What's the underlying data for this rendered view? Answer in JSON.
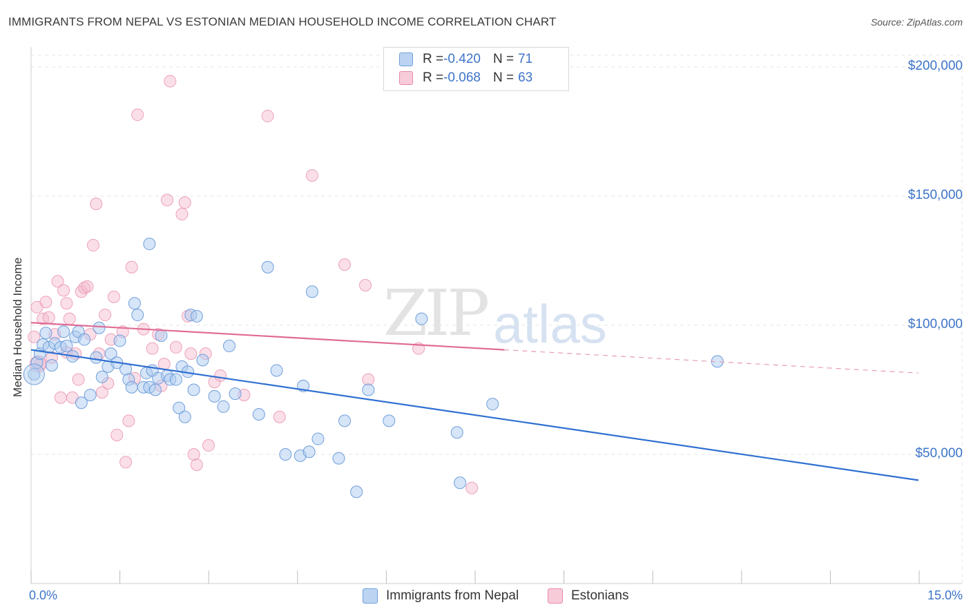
{
  "title": "IMMIGRANTS FROM NEPAL VS ESTONIAN MEDIAN HOUSEHOLD INCOME CORRELATION CHART",
  "source": "Source: ZipAtlas.com",
  "watermark": {
    "zip": "ZIP",
    "atlas": "atlas"
  },
  "legend": {
    "row1": {
      "r_label": "R = ",
      "r_value": "-0.420",
      "n_label": "N = ",
      "n_value": "71"
    },
    "row2": {
      "r_label": "R = ",
      "r_value": "-0.068",
      "n_label": "N = ",
      "n_value": "63"
    }
  },
  "bottom_legend": {
    "series1": "Immigrants from Nepal",
    "series2": "Estonians"
  },
  "colors": {
    "blue": "#3c74c9",
    "blue_fill": "#aecbf0",
    "pink": "#e06b95",
    "pink_fill": "#f5b9cc",
    "grid": "#e2e2e2"
  },
  "chart_data": {
    "type": "scatter",
    "title": "IMMIGRANTS FROM NEPAL VS ESTONIAN MEDIAN HOUSEHOLD INCOME CORRELATION CHART",
    "xlabel": "",
    "ylabel": "Median Household Income",
    "xlim": [
      0,
      15
    ],
    "ylim": [
      0,
      210000
    ],
    "x_tick_labels": [
      "0.0%",
      "15.0%"
    ],
    "y_ticks": [
      50000,
      100000,
      150000,
      200000
    ],
    "y_tick_labels": [
      "$50,000",
      "$100,000",
      "$150,000",
      "$200,000"
    ],
    "grid": true,
    "series": [
      {
        "name": "Immigrants from Nepal",
        "R": -0.42,
        "N": 71,
        "trend": {
          "x0": 0,
          "y0": 90500,
          "x1": 15,
          "y1": 40000,
          "dash_from": 15
        },
        "points": [
          [
            0.05,
            81000
          ],
          [
            0.1,
            85500
          ],
          [
            0.15,
            89000
          ],
          [
            0.2,
            92500
          ],
          [
            0.25,
            97000
          ],
          [
            0.3,
            91500
          ],
          [
            0.35,
            84500
          ],
          [
            0.4,
            93000
          ],
          [
            0.5,
            91500
          ],
          [
            0.55,
            97500
          ],
          [
            0.6,
            92000
          ],
          [
            0.7,
            88000
          ],
          [
            0.75,
            95500
          ],
          [
            0.8,
            97500
          ],
          [
            0.85,
            70000
          ],
          [
            0.9,
            94500
          ],
          [
            1.0,
            73000
          ],
          [
            1.1,
            87500
          ],
          [
            1.15,
            99000
          ],
          [
            1.2,
            80000
          ],
          [
            1.3,
            84000
          ],
          [
            1.35,
            89000
          ],
          [
            1.45,
            85500
          ],
          [
            1.5,
            94000
          ],
          [
            1.6,
            83000
          ],
          [
            1.65,
            79000
          ],
          [
            1.7,
            76000
          ],
          [
            1.75,
            108500
          ],
          [
            1.8,
            104000
          ],
          [
            1.9,
            76000
          ],
          [
            1.95,
            81500
          ],
          [
            2.0,
            76000
          ],
          [
            2.05,
            82500
          ],
          [
            2.1,
            75000
          ],
          [
            2.15,
            79500
          ],
          [
            2.2,
            96000
          ],
          [
            2.3,
            80500
          ],
          [
            2.35,
            79000
          ],
          [
            2.45,
            79000
          ],
          [
            2.5,
            68000
          ],
          [
            2.55,
            84000
          ],
          [
            2.6,
            64500
          ],
          [
            2.65,
            82000
          ],
          [
            2.7,
            104000
          ],
          [
            2.75,
            75000
          ],
          [
            2.8,
            103500
          ],
          [
            2.9,
            86500
          ],
          [
            3.1,
            72500
          ],
          [
            3.25,
            68500
          ],
          [
            3.35,
            92000
          ],
          [
            3.45,
            73500
          ],
          [
            3.85,
            65500
          ],
          [
            4.0,
            122500
          ],
          [
            4.15,
            82500
          ],
          [
            4.3,
            50000
          ],
          [
            4.55,
            49500
          ],
          [
            4.6,
            76500
          ],
          [
            4.7,
            51000
          ],
          [
            4.75,
            113000
          ],
          [
            4.85,
            56000
          ],
          [
            5.2,
            48500
          ],
          [
            5.3,
            63000
          ],
          [
            5.5,
            35500
          ],
          [
            5.7,
            75000
          ],
          [
            6.05,
            63000
          ],
          [
            6.6,
            102500
          ],
          [
            7.2,
            58500
          ],
          [
            7.25,
            39000
          ],
          [
            7.8,
            69500
          ],
          [
            11.6,
            86000
          ],
          [
            2.0,
            131500
          ]
        ]
      },
      {
        "name": "Estonians",
        "R": -0.068,
        "N": 63,
        "trend": {
          "x0": 0,
          "y0": 101000,
          "x1": 8.0,
          "y1": 90500,
          "dash_to": 15,
          "dash_y": 81500
        },
        "points": [
          [
            0.05,
            95500
          ],
          [
            0.1,
            107000
          ],
          [
            0.15,
            85000
          ],
          [
            0.2,
            102500
          ],
          [
            0.25,
            109000
          ],
          [
            0.3,
            103000
          ],
          [
            0.35,
            87500
          ],
          [
            0.4,
            96500
          ],
          [
            0.45,
            117000
          ],
          [
            0.5,
            72000
          ],
          [
            0.55,
            113500
          ],
          [
            0.6,
            108500
          ],
          [
            0.65,
            102500
          ],
          [
            0.7,
            72000
          ],
          [
            0.75,
            89000
          ],
          [
            0.8,
            79000
          ],
          [
            0.85,
            113000
          ],
          [
            0.9,
            114500
          ],
          [
            1.0,
            96500
          ],
          [
            1.05,
            131000
          ],
          [
            1.1,
            147000
          ],
          [
            1.15,
            89000
          ],
          [
            1.2,
            74000
          ],
          [
            1.25,
            104000
          ],
          [
            1.3,
            77500
          ],
          [
            1.35,
            94500
          ],
          [
            1.4,
            111000
          ],
          [
            1.45,
            57500
          ],
          [
            1.55,
            97500
          ],
          [
            1.6,
            47000
          ],
          [
            1.65,
            63000
          ],
          [
            1.7,
            122500
          ],
          [
            1.75,
            79500
          ],
          [
            1.8,
            181500
          ],
          [
            1.9,
            98500
          ],
          [
            2.05,
            91000
          ],
          [
            2.15,
            96500
          ],
          [
            2.2,
            76500
          ],
          [
            2.25,
            85000
          ],
          [
            2.3,
            148500
          ],
          [
            2.35,
            194500
          ],
          [
            2.45,
            91500
          ],
          [
            2.55,
            143000
          ],
          [
            2.6,
            147500
          ],
          [
            2.65,
            103500
          ],
          [
            2.7,
            89000
          ],
          [
            2.75,
            50000
          ],
          [
            2.8,
            46000
          ],
          [
            2.95,
            89000
          ],
          [
            3.0,
            53500
          ],
          [
            3.1,
            78000
          ],
          [
            3.2,
            80500
          ],
          [
            3.6,
            73000
          ],
          [
            4.0,
            181000
          ],
          [
            4.2,
            64500
          ],
          [
            4.75,
            158000
          ],
          [
            5.3,
            123500
          ],
          [
            5.65,
            115500
          ],
          [
            5.7,
            79000
          ],
          [
            6.55,
            91000
          ],
          [
            7.45,
            37000
          ],
          [
            0.6,
            89500
          ],
          [
            0.95,
            115000
          ]
        ]
      }
    ]
  }
}
